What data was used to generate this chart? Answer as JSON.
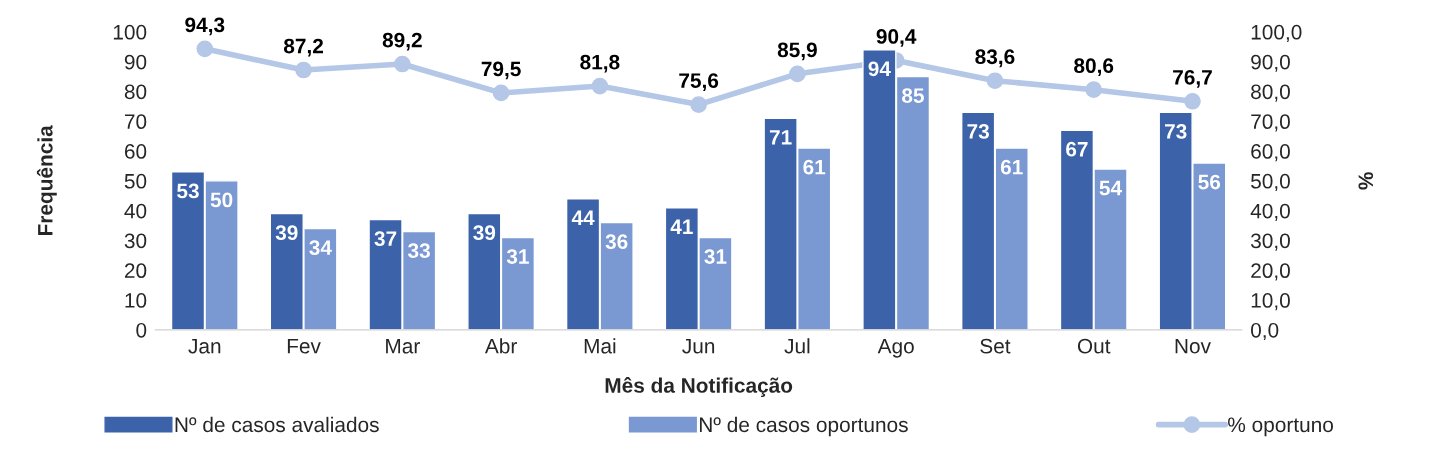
{
  "chart_data": {
    "type": "bar",
    "categories": [
      "Jan",
      "Fev",
      "Mar",
      "Abr",
      "Mai",
      "Jun",
      "Jul",
      "Ago",
      "Set",
      "Out",
      "Nov"
    ],
    "xlabel": "Mês da Notificação",
    "ylabel": "Frequência",
    "y2label": "%",
    "ylim": [
      0,
      100
    ],
    "yticks": [
      0,
      10,
      20,
      30,
      40,
      50,
      60,
      70,
      80,
      90,
      100
    ],
    "y2lim": [
      0,
      100
    ],
    "y2ticks": [
      {
        "value": 0,
        "label": "0,0"
      },
      {
        "value": 10,
        "label": "10,0"
      },
      {
        "value": 20,
        "label": "20,0"
      },
      {
        "value": 30,
        "label": "30,0"
      },
      {
        "value": 40,
        "label": "40,0"
      },
      {
        "value": 50,
        "label": "50,0"
      },
      {
        "value": 60,
        "label": "60,0"
      },
      {
        "value": 70,
        "label": "70,0"
      },
      {
        "value": 80,
        "label": "80,0"
      },
      {
        "value": 90,
        "label": "90,0"
      },
      {
        "value": 100,
        "label": "100,0"
      }
    ],
    "series": [
      {
        "name": "Nº de casos avaliados",
        "color": "#3c63aa",
        "values": [
          53,
          39,
          37,
          39,
          44,
          41,
          71,
          94,
          73,
          67,
          73
        ],
        "value_labels": [
          "53",
          "39",
          "37",
          "39",
          "44",
          "41",
          "71",
          "94",
          "73",
          "67",
          "73"
        ]
      },
      {
        "name": "Nº de casos oportunos",
        "color": "#7a98d2",
        "values": [
          50,
          34,
          33,
          31,
          36,
          31,
          61,
          85,
          61,
          54,
          56
        ],
        "value_labels": [
          "50",
          "34",
          "33",
          "31",
          "36",
          "31",
          "61",
          "85",
          "61",
          "54",
          "56"
        ]
      },
      {
        "name": "% oportuno",
        "type": "line",
        "axis": "y2",
        "color": "#b4c7e7",
        "marker": "circle",
        "values": [
          94.3,
          87.2,
          89.2,
          79.5,
          81.8,
          75.6,
          85.9,
          90.4,
          83.6,
          80.6,
          76.7
        ],
        "value_labels": [
          "94,3",
          "87,2",
          "89,2",
          "79,5",
          "81,8",
          "75,6",
          "85,9",
          "90,4",
          "83,6",
          "80,6",
          "76,7"
        ]
      }
    ],
    "grid": false,
    "legend": "bottom"
  }
}
